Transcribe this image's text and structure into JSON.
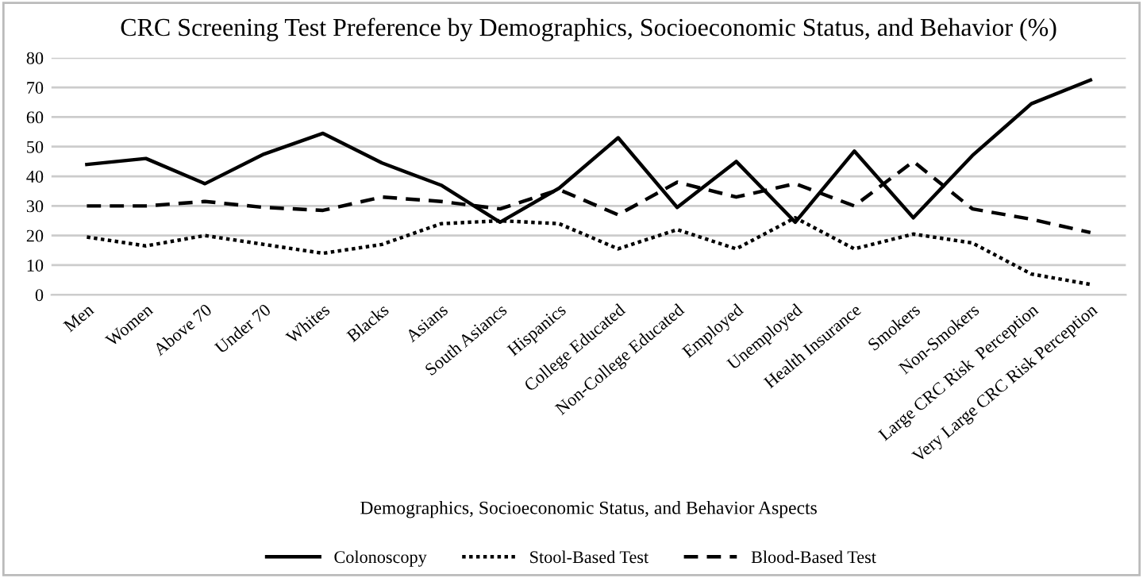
{
  "chart_data": {
    "type": "line",
    "title": "CRC Screening Test Preference by Demographics, Socioeconomic Status, and Behavior (%)",
    "xlabel": "Demographics, Socioeconomic Status, and Behavior Aspects",
    "categories": [
      "Men",
      "Women",
      "Above 70",
      "Under 70",
      "Whites",
      "Blacks",
      "Asians",
      "South Asiancs",
      "Hispanics",
      "College Educated",
      "Non-College Educated",
      "Employed",
      "Unemployed",
      "Health Insurance",
      "Smokers",
      "Non-Smokers",
      "Large CRC Risk  Perception",
      "Very Large CRC Risk Perception"
    ],
    "series": [
      {
        "name": "Colonoscopy",
        "color": "#000000",
        "line_style": "solid",
        "values": [
          44,
          46,
          37.5,
          47.5,
          54.5,
          44.5,
          37,
          24.5,
          36,
          53,
          29.5,
          45,
          24.5,
          48.5,
          26,
          47,
          64.5,
          72.5
        ]
      },
      {
        "name": "Stool-Based Test",
        "color": "#000000",
        "line_style": "dotted",
        "values": [
          19.5,
          16.5,
          20,
          17,
          14,
          17,
          24,
          25,
          24,
          15.5,
          22,
          15.5,
          26,
          15.5,
          20.5,
          17.5,
          7,
          3.5
        ]
      },
      {
        "name": "Blood-Based Test",
        "color": "#000000",
        "line_style": "dashed",
        "values": [
          30,
          30,
          31.5,
          29.5,
          28.5,
          33,
          31.5,
          29,
          35.5,
          27,
          38,
          33,
          37.5,
          30,
          45,
          29,
          25.5,
          21
        ]
      }
    ],
    "ylim": [
      0,
      80
    ],
    "yticks": [
      0,
      10,
      20,
      30,
      40,
      50,
      60,
      70,
      80
    ],
    "grid": "y",
    "legend": "bottom",
    "marker": "none"
  }
}
